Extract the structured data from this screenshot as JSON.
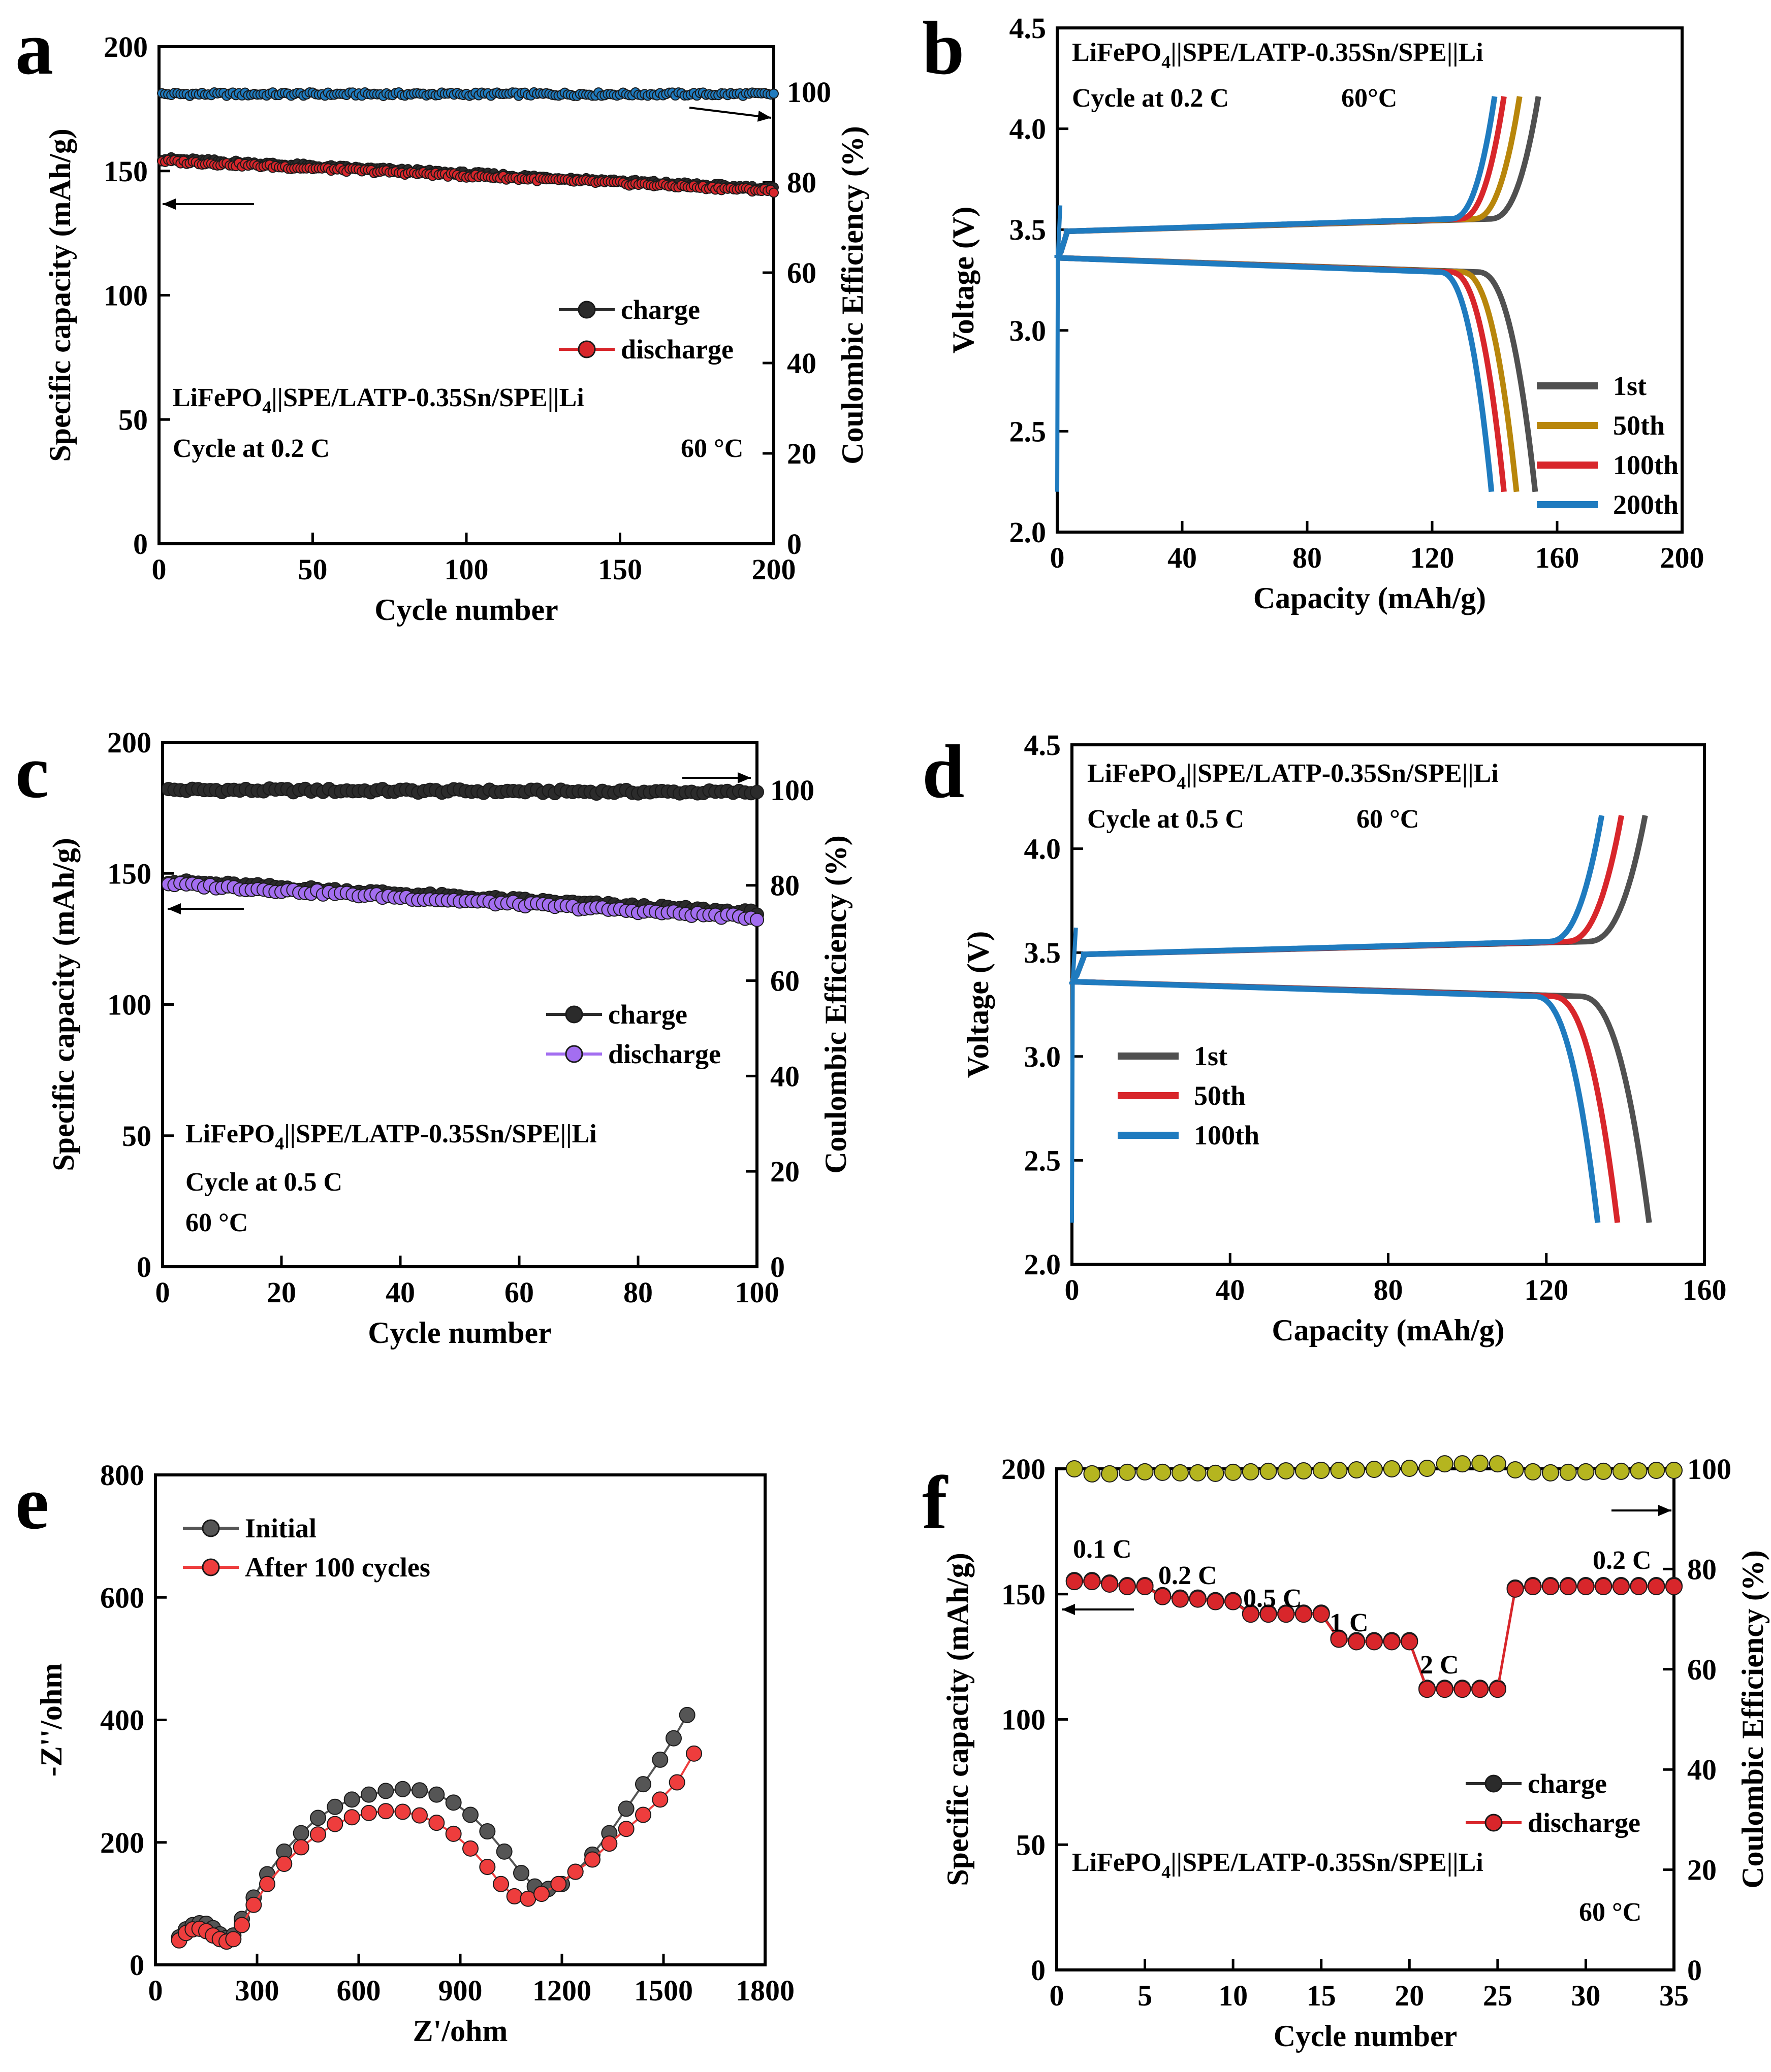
{
  "figure": {
    "colors": {
      "black": "#000000",
      "charge": "#2b2b2b",
      "red": "#d8262b",
      "blue": "#1f7bbf",
      "gray": "#505050",
      "gold": "#b8860b",
      "purple": "#a36ef0",
      "olive": "#b5b51f",
      "eis_black": "#555555",
      "eis_red": "#ee3d3d"
    }
  },
  "chart_data": [
    {
      "id": "a",
      "panel_label": "a",
      "type": "scatter",
      "title": "",
      "xlabel": "Cycle number",
      "ylabel": "Specific capacity (mAh/g)",
      "y2label": "Coulombic Efficiency (%)",
      "xlim": [
        0,
        200
      ],
      "ylim": [
        0,
        200
      ],
      "y2lim": [
        0,
        110
      ],
      "xticks": [
        "0",
        "50",
        "100",
        "150",
        "200"
      ],
      "yticks": [
        "0",
        "50",
        "100",
        "150",
        "200"
      ],
      "y2ticks": [
        "0",
        "20",
        "40",
        "60",
        "80",
        "100"
      ],
      "series": [
        {
          "name": "charge",
          "axis": "left",
          "cycles": [
            1,
            200
          ],
          "start": 155,
          "end": 143
        },
        {
          "name": "discharge",
          "axis": "left",
          "cycles": [
            1,
            200
          ],
          "start": 154,
          "end": 142
        },
        {
          "name": "coulombic efficiency",
          "axis": "right",
          "cycles": [
            1,
            200
          ],
          "start": 99.5,
          "end": 99.5
        }
      ],
      "legend": [
        "charge",
        "discharge"
      ],
      "annotations": [
        "Cycle at 0.2 C",
        "60 °C"
      ],
      "cell": {
        "pre": "LiFePO",
        "sub": "4",
        "post": "||SPE/LATP-0.35Sn/SPE||Li"
      }
    },
    {
      "id": "b",
      "panel_label": "b",
      "type": "line",
      "title": "",
      "xlabel": "Capacity (mAh/g)",
      "ylabel": "Voltage (V)",
      "xlim": [
        0,
        200
      ],
      "ylim": [
        2.0,
        4.5
      ],
      "xticks": [
        "0",
        "40",
        "80",
        "120",
        "160",
        "200"
      ],
      "yticks": [
        "2.0",
        "2.5",
        "3.0",
        "3.5",
        "4.0",
        "4.5"
      ],
      "series": [
        {
          "name": "1st",
          "charge_capacity": 154,
          "discharge_capacity": 153
        },
        {
          "name": "50th",
          "charge_capacity": 148,
          "discharge_capacity": 147
        },
        {
          "name": "100th",
          "charge_capacity": 143,
          "discharge_capacity": 143
        },
        {
          "name": "200th",
          "charge_capacity": 140,
          "discharge_capacity": 139
        }
      ],
      "legend": [
        "1st",
        "50th",
        "100th",
        "200th"
      ],
      "annotations": [
        "Cycle at 0.2 C",
        "60°C"
      ],
      "cell": {
        "pre": "LiFePO",
        "sub": "4",
        "post": "||SPE/LATP-0.35Sn/SPE||Li"
      }
    },
    {
      "id": "c",
      "panel_label": "c",
      "type": "scatter",
      "title": "",
      "xlabel": "Cycle number",
      "ylabel": "Specific capacity (mAh/g)",
      "y2label": "Coulombic Efficiency (%)",
      "xlim": [
        0,
        100
      ],
      "ylim": [
        0,
        200
      ],
      "y2lim": [
        0,
        110
      ],
      "xticks": [
        "0",
        "20",
        "40",
        "60",
        "80",
        "100"
      ],
      "yticks": [
        "0",
        "50",
        "100",
        "150",
        "200"
      ],
      "y2ticks": [
        "0",
        "20",
        "40",
        "60",
        "80",
        "100"
      ],
      "series": [
        {
          "name": "charge",
          "axis": "left",
          "cycles": [
            1,
            100
          ],
          "start": 147,
          "end": 135
        },
        {
          "name": "discharge",
          "axis": "left",
          "cycles": [
            1,
            100
          ],
          "start": 146,
          "end": 133
        },
        {
          "name": "coulombic efficiency",
          "axis": "right",
          "cycles": [
            1,
            100
          ],
          "start": 100,
          "end": 99.5
        }
      ],
      "legend": [
        "charge",
        "discharge"
      ],
      "annotations": [
        "Cycle at 0.5 C",
        "60 °C"
      ],
      "cell": {
        "pre": "LiFePO",
        "sub": "4",
        "post": "||SPE/LATP-0.35Sn/SPE||Li"
      }
    },
    {
      "id": "d",
      "panel_label": "d",
      "type": "line",
      "title": "",
      "xlabel": "Capacity (mAh/g)",
      "ylabel": "Voltage (V)",
      "xlim": [
        0,
        160
      ],
      "ylim": [
        2.0,
        4.5
      ],
      "xticks": [
        "0",
        "40",
        "80",
        "120",
        "160"
      ],
      "yticks": [
        "2.0",
        "2.5",
        "3.0",
        "3.5",
        "4.0",
        "4.5"
      ],
      "series": [
        {
          "name": "1st",
          "charge_capacity": 145,
          "discharge_capacity": 146
        },
        {
          "name": "50th",
          "charge_capacity": 139,
          "discharge_capacity": 138
        },
        {
          "name": "100th",
          "charge_capacity": 134,
          "discharge_capacity": 133
        }
      ],
      "legend": [
        "1st",
        "50th",
        "100th"
      ],
      "annotations": [
        "Cycle at 0.5 C",
        "60 °C"
      ],
      "cell": {
        "pre": "LiFePO",
        "sub": "4",
        "post": "||SPE/LATP-0.35Sn/SPE||Li"
      }
    },
    {
      "id": "e",
      "panel_label": "e",
      "type": "scatter",
      "title": "",
      "xlabel": "Z'/ohm",
      "ylabel": "-Z''/ohm",
      "xlim": [
        0,
        1800
      ],
      "ylim": [
        0,
        800
      ],
      "xticks": [
        "0",
        "300",
        "600",
        "900",
        "1200",
        "1500",
        "1800"
      ],
      "yticks": [
        "0",
        "200",
        "400",
        "600",
        "800"
      ],
      "series": [
        {
          "name": "Initial",
          "points": [
            [
              70,
              45
            ],
            [
              90,
              58
            ],
            [
              110,
              65
            ],
            [
              130,
              68
            ],
            [
              150,
              67
            ],
            [
              170,
              60
            ],
            [
              190,
              50
            ],
            [
              210,
              44
            ],
            [
              230,
              48
            ],
            [
              255,
              75
            ],
            [
              290,
              110
            ],
            [
              330,
              148
            ],
            [
              380,
              185
            ],
            [
              430,
              215
            ],
            [
              480,
              240
            ],
            [
              530,
              258
            ],
            [
              580,
              270
            ],
            [
              630,
              278
            ],
            [
              680,
              284
            ],
            [
              730,
              287
            ],
            [
              780,
              285
            ],
            [
              830,
              278
            ],
            [
              880,
              265
            ],
            [
              930,
              245
            ],
            [
              980,
              218
            ],
            [
              1030,
              185
            ],
            [
              1080,
              150
            ],
            [
              1120,
              128
            ],
            [
              1160,
              124
            ],
            [
              1200,
              132
            ],
            [
              1240,
              152
            ],
            [
              1290,
              180
            ],
            [
              1340,
              215
            ],
            [
              1390,
              255
            ],
            [
              1440,
              295
            ],
            [
              1490,
              335
            ],
            [
              1530,
              370
            ],
            [
              1570,
              408
            ]
          ]
        },
        {
          "name": "After 100 cycles",
          "points": [
            [
              70,
              40
            ],
            [
              90,
              52
            ],
            [
              110,
              58
            ],
            [
              130,
              59
            ],
            [
              150,
              55
            ],
            [
              170,
              48
            ],
            [
              190,
              42
            ],
            [
              210,
              38
            ],
            [
              230,
              42
            ],
            [
              255,
              65
            ],
            [
              290,
              98
            ],
            [
              330,
              132
            ],
            [
              380,
              165
            ],
            [
              430,
              192
            ],
            [
              480,
              213
            ],
            [
              530,
              230
            ],
            [
              580,
              241
            ],
            [
              630,
              248
            ],
            [
              680,
              251
            ],
            [
              730,
              250
            ],
            [
              780,
              244
            ],
            [
              830,
              232
            ],
            [
              880,
              214
            ],
            [
              930,
              190
            ],
            [
              980,
              160
            ],
            [
              1020,
              132
            ],
            [
              1060,
              112
            ],
            [
              1100,
              108
            ],
            [
              1140,
              116
            ],
            [
              1190,
              132
            ],
            [
              1240,
              152
            ],
            [
              1290,
              172
            ],
            [
              1340,
              198
            ],
            [
              1390,
              222
            ],
            [
              1440,
              245
            ],
            [
              1490,
              270
            ],
            [
              1540,
              298
            ],
            [
              1590,
              345
            ]
          ]
        }
      ],
      "legend": [
        "Initial",
        "After 100 cycles"
      ]
    },
    {
      "id": "f",
      "panel_label": "f",
      "type": "scatter",
      "title": "",
      "xlabel": "Cycle number",
      "ylabel": "Specific capacity (mAh/g)",
      "y2label": "Coulombic Efficiency (%)",
      "xlim": [
        0,
        35
      ],
      "ylim": [
        0,
        200
      ],
      "y2lim": [
        0,
        100
      ],
      "xticks": [
        "0",
        "5",
        "10",
        "15",
        "20",
        "25",
        "30",
        "35"
      ],
      "yticks": [
        "0",
        "50",
        "100",
        "150",
        "200"
      ],
      "y2ticks": [
        "0",
        "20",
        "40",
        "60",
        "80",
        "100"
      ],
      "rates": [
        {
          "label": "0.1 C",
          "cycles": [
            1,
            5
          ],
          "capacity": [
            155,
            155,
            154,
            153,
            153
          ]
        },
        {
          "label": "0.2 C",
          "cycles": [
            6,
            10
          ],
          "capacity": [
            149,
            148,
            148,
            147,
            147
          ]
        },
        {
          "label": "0.5 C",
          "cycles": [
            11,
            15
          ],
          "capacity": [
            142,
            142,
            142,
            142,
            142
          ]
        },
        {
          "label": "1 C",
          "cycles": [
            16,
            20
          ],
          "capacity": [
            132,
            131,
            131,
            131,
            131
          ]
        },
        {
          "label": "2 C",
          "cycles": [
            21,
            25
          ],
          "capacity": [
            112,
            112,
            112,
            112,
            112
          ]
        },
        {
          "label": "0.2 C",
          "cycles": [
            26,
            35
          ],
          "capacity": [
            152,
            153,
            153,
            153,
            153,
            153,
            153,
            153,
            153,
            153
          ]
        }
      ],
      "coulombic_efficiency": [
        100,
        99,
        99,
        99.3,
        99.4,
        99.3,
        99.2,
        99.2,
        99.1,
        99.3,
        99.4,
        99.5,
        99.6,
        99.6,
        99.7,
        99.7,
        99.8,
        99.9,
        100,
        100.1,
        100.1,
        101,
        101,
        101.1,
        101,
        99.8,
        99.4,
        99.2,
        99.3,
        99.4,
        99.5,
        99.5,
        99.6,
        99.7,
        99.7
      ],
      "legend": [
        "charge",
        "discharge"
      ],
      "annotations": [
        "60 °C"
      ],
      "cell": {
        "pre": "LiFePO",
        "sub": "4",
        "post": "||SPE/LATP-0.35Sn/SPE||Li"
      }
    }
  ]
}
